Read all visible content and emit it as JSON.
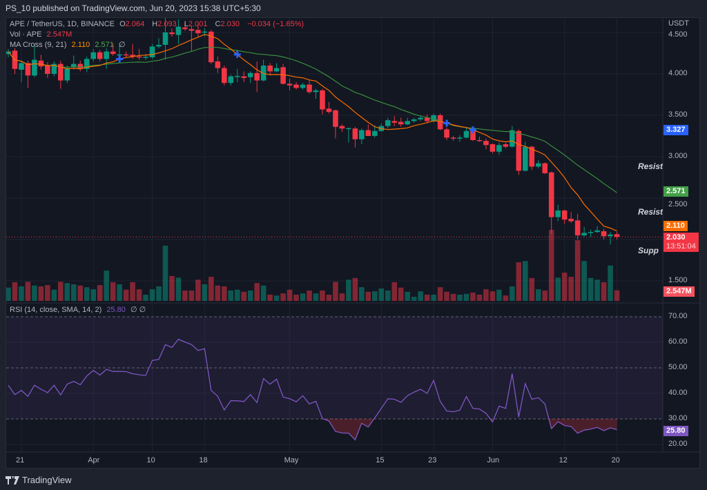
{
  "header": {
    "published": "PS_10 published on TradingView.com, Jun 20, 2023 15:38 UTC+5:30"
  },
  "legend": {
    "symbol": "APE / TetherUS, 1D, BINANCE",
    "o_label": "O",
    "o": "2.064",
    "h_label": "H",
    "h": "2.093",
    "l_label": "L",
    "l": "2.001",
    "c_label": "C",
    "c": "2.030",
    "change": "−0.034 (−1.65%)",
    "vol_label": "Vol · APE",
    "vol_value": "2.547M",
    "ma_label": "MA Cross (9, 21)",
    "ma_fast": "2.110",
    "ma_slow": "2.571",
    "ma_extra": "∅"
  },
  "rsi_legend": {
    "label": "RSI (14, close, SMA, 14, 2)",
    "value": "25.80",
    "extra": "∅ ∅"
  },
  "price_axis": {
    "unit": "USDT",
    "ticks": [
      "4.500",
      "4.000",
      "3.500",
      "3.000",
      "2.500",
      "1.500"
    ],
    "badges": {
      "blue": {
        "text": "3.327",
        "price": 3.327
      },
      "ma_slow": {
        "text": "2.571",
        "price": 2.571
      },
      "ma_fast": {
        "text": "2.110",
        "price": 2.11
      },
      "last": {
        "text": "2.030",
        "price": 2.03,
        "countdown": "13:51:04"
      },
      "volume": "2.547M"
    }
  },
  "rsi_axis": {
    "ticks": [
      "70.00",
      "60.00",
      "50.00",
      "40.00",
      "30.00",
      "20.00"
    ],
    "badge": "25.80"
  },
  "time_axis": [
    {
      "label": "21",
      "date": "2023-03-21"
    },
    {
      "label": "Apr",
      "date": "2023-04-01"
    },
    {
      "label": "10",
      "date": "2023-04-10"
    },
    {
      "label": "18",
      "date": "2023-04-18"
    },
    {
      "label": "May",
      "date": "2023-05-01"
    },
    {
      "label": "15",
      "date": "2023-05-15"
    },
    {
      "label": "23",
      "date": "2023-05-23"
    },
    {
      "label": "Jun",
      "date": "2023-06-01"
    },
    {
      "label": "12",
      "date": "2023-06-12"
    },
    {
      "label": "20",
      "date": "2023-06-20"
    }
  ],
  "drawings": [
    {
      "text": "Resista",
      "price": 2.88
    },
    {
      "text": "Resista",
      "price": 2.33
    },
    {
      "text": "Supp",
      "price": 1.87
    }
  ],
  "colors": {
    "up": "#089981",
    "down": "#f23645",
    "ma_fast": "#ff6d00",
    "ma_slow": "#388e3c",
    "rsi": "#7e57c2",
    "cross": "#2962ff",
    "bg": "#131722"
  },
  "footer": {
    "brand": "TradingView"
  },
  "chart_data": {
    "type": "candlestick",
    "symbol": "APE / TetherUS",
    "interval": "1D",
    "ylim": [
      1.35,
      4.6
    ],
    "ma_periods": [
      9,
      21
    ],
    "ma_crosses": [
      "2023-04-05",
      "2023-04-23",
      "2023-05-25",
      "2023-05-29"
    ],
    "dates": [
      "2023-03-19",
      "2023-03-20",
      "2023-03-21",
      "2023-03-22",
      "2023-03-23",
      "2023-03-24",
      "2023-03-25",
      "2023-03-26",
      "2023-03-27",
      "2023-03-28",
      "2023-03-29",
      "2023-03-30",
      "2023-03-31",
      "2023-04-01",
      "2023-04-02",
      "2023-04-03",
      "2023-04-04",
      "2023-04-05",
      "2023-04-06",
      "2023-04-07",
      "2023-04-08",
      "2023-04-09",
      "2023-04-10",
      "2023-04-11",
      "2023-04-12",
      "2023-04-13",
      "2023-04-14",
      "2023-04-15",
      "2023-04-16",
      "2023-04-17",
      "2023-04-18",
      "2023-04-19",
      "2023-04-20",
      "2023-04-21",
      "2023-04-22",
      "2023-04-23",
      "2023-04-24",
      "2023-04-25",
      "2023-04-26",
      "2023-04-27",
      "2023-04-28",
      "2023-04-29",
      "2023-04-30",
      "2023-05-01",
      "2023-05-02",
      "2023-05-03",
      "2023-05-04",
      "2023-05-05",
      "2023-05-06",
      "2023-05-07",
      "2023-05-08",
      "2023-05-09",
      "2023-05-10",
      "2023-05-11",
      "2023-05-12",
      "2023-05-13",
      "2023-05-14",
      "2023-05-15",
      "2023-05-16",
      "2023-05-17",
      "2023-05-18",
      "2023-05-19",
      "2023-05-20",
      "2023-05-21",
      "2023-05-22",
      "2023-05-23",
      "2023-05-24",
      "2023-05-25",
      "2023-05-26",
      "2023-05-27",
      "2023-05-28",
      "2023-05-29",
      "2023-05-30",
      "2023-05-31",
      "2023-06-01",
      "2023-06-02",
      "2023-06-03",
      "2023-06-04",
      "2023-06-05",
      "2023-06-06",
      "2023-06-07",
      "2023-06-08",
      "2023-06-09",
      "2023-06-10",
      "2023-06-11",
      "2023-06-12",
      "2023-06-13",
      "2023-06-14",
      "2023-06-15",
      "2023-06-16",
      "2023-06-17",
      "2023-06-18",
      "2023-06-19",
      "2023-06-20"
    ],
    "ohlc": [
      [
        4.24,
        4.3,
        4.2,
        4.27
      ],
      [
        4.28,
        4.31,
        4.0,
        4.06
      ],
      [
        4.05,
        4.16,
        3.9,
        4.13
      ],
      [
        4.13,
        4.16,
        3.83,
        3.98
      ],
      [
        3.98,
        4.36,
        3.96,
        4.17
      ],
      [
        4.16,
        4.23,
        4.05,
        4.09
      ],
      [
        4.1,
        4.14,
        3.95,
        4.0
      ],
      [
        4.0,
        4.15,
        3.97,
        4.12
      ],
      [
        4.12,
        4.16,
        3.82,
        3.92
      ],
      [
        3.92,
        4.1,
        3.89,
        4.07
      ],
      [
        4.08,
        4.22,
        4.05,
        4.12
      ],
      [
        4.12,
        4.16,
        4.03,
        4.06
      ],
      [
        4.06,
        4.21,
        4.02,
        4.18
      ],
      [
        4.18,
        4.3,
        4.15,
        4.26
      ],
      [
        4.26,
        4.29,
        4.15,
        4.18
      ],
      [
        4.18,
        4.31,
        4.06,
        4.27
      ],
      [
        4.27,
        4.37,
        4.22,
        4.24
      ],
      [
        4.23,
        4.37,
        4.16,
        4.235
      ],
      [
        4.235,
        4.27,
        4.2,
        4.23
      ],
      [
        4.23,
        4.36,
        4.18,
        4.21
      ],
      [
        4.21,
        4.3,
        4.17,
        4.2
      ],
      [
        4.2,
        4.24,
        4.17,
        4.205
      ],
      [
        4.2,
        4.36,
        4.18,
        4.33
      ],
      [
        4.33,
        4.43,
        4.31,
        4.35
      ],
      [
        4.35,
        4.68,
        4.17,
        4.5
      ],
      [
        4.5,
        4.55,
        4.45,
        4.48
      ],
      [
        4.47,
        4.66,
        4.36,
        4.57
      ],
      [
        4.56,
        4.62,
        4.52,
        4.54
      ],
      [
        4.54,
        4.58,
        4.27,
        4.52
      ],
      [
        4.53,
        4.6,
        4.45,
        4.49
      ],
      [
        4.5,
        4.55,
        4.45,
        4.51
      ],
      [
        4.51,
        4.53,
        4.12,
        4.14
      ],
      [
        4.15,
        4.21,
        4.01,
        4.07
      ],
      [
        4.07,
        4.1,
        3.86,
        3.89
      ],
      [
        3.89,
        3.99,
        3.86,
        3.97
      ],
      [
        3.97,
        4.06,
        3.9,
        3.975
      ],
      [
        3.97,
        4.03,
        3.9,
        3.95
      ],
      [
        3.96,
        4.03,
        3.89,
        4.01
      ],
      [
        4.01,
        4.15,
        3.78,
        3.92
      ],
      [
        3.92,
        4.17,
        3.91,
        4.1
      ],
      [
        4.1,
        4.13,
        3.98,
        4.03
      ],
      [
        4.03,
        4.13,
        4.02,
        4.07
      ],
      [
        4.08,
        4.12,
        3.87,
        3.88
      ],
      [
        3.88,
        3.94,
        3.8,
        3.86
      ],
      [
        3.87,
        3.9,
        3.81,
        3.83
      ],
      [
        3.83,
        3.89,
        3.81,
        3.87
      ],
      [
        3.87,
        3.92,
        3.76,
        3.78
      ],
      [
        3.78,
        3.82,
        3.7,
        3.8
      ],
      [
        3.8,
        3.82,
        3.51,
        3.57
      ],
      [
        3.58,
        3.66,
        3.52,
        3.54
      ],
      [
        3.56,
        3.57,
        3.22,
        3.36
      ],
      [
        3.37,
        3.39,
        3.3,
        3.34
      ],
      [
        3.34,
        3.35,
        3.17,
        3.345
      ],
      [
        3.34,
        3.36,
        3.11,
        3.21
      ],
      [
        3.21,
        3.34,
        3.15,
        3.32
      ],
      [
        3.32,
        3.39,
        3.27,
        3.25
      ],
      [
        3.25,
        3.38,
        3.23,
        3.31
      ],
      [
        3.31,
        3.4,
        3.3,
        3.37
      ],
      [
        3.37,
        3.47,
        3.34,
        3.44
      ],
      [
        3.43,
        3.49,
        3.37,
        3.41
      ],
      [
        3.42,
        3.47,
        3.36,
        3.39
      ],
      [
        3.39,
        3.47,
        3.38,
        3.43
      ],
      [
        3.43,
        3.47,
        3.41,
        3.45
      ],
      [
        3.45,
        3.5,
        3.43,
        3.47
      ],
      [
        3.47,
        3.51,
        3.41,
        3.43
      ],
      [
        3.43,
        3.52,
        3.41,
        3.5
      ],
      [
        3.5,
        3.52,
        3.32,
        3.33
      ],
      [
        3.33,
        3.35,
        3.2,
        3.23
      ],
      [
        3.23,
        3.25,
        3.19,
        3.22
      ],
      [
        3.22,
        3.26,
        3.18,
        3.23
      ],
      [
        3.23,
        3.35,
        3.22,
        3.31
      ],
      [
        3.31,
        3.34,
        3.19,
        3.2
      ],
      [
        3.2,
        3.24,
        3.18,
        3.19
      ],
      [
        3.19,
        3.22,
        3.09,
        3.14
      ],
      [
        3.15,
        3.16,
        3.04,
        3.06
      ],
      [
        3.06,
        3.17,
        3.02,
        3.14
      ],
      [
        3.15,
        3.17,
        3.1,
        3.12
      ],
      [
        3.12,
        3.37,
        3.11,
        3.32
      ],
      [
        3.31,
        3.33,
        2.78,
        2.83
      ],
      [
        2.83,
        3.18,
        2.82,
        3.12
      ],
      [
        3.12,
        3.13,
        2.84,
        2.88
      ],
      [
        2.88,
        2.96,
        2.86,
        2.92
      ],
      [
        2.92,
        2.93,
        2.79,
        2.8
      ],
      [
        2.81,
        2.82,
        2.07,
        2.27
      ],
      [
        2.27,
        2.42,
        2.22,
        2.35
      ],
      [
        2.35,
        2.36,
        2.19,
        2.24
      ],
      [
        2.25,
        2.33,
        2.2,
        2.22
      ],
      [
        2.23,
        2.31,
        2.0,
        2.05
      ],
      [
        2.05,
        2.15,
        2.03,
        2.08
      ],
      [
        2.085,
        2.12,
        2.03,
        2.09
      ],
      [
        2.09,
        2.16,
        2.08,
        2.11
      ],
      [
        2.1,
        2.13,
        2.0,
        2.04
      ],
      [
        2.04,
        2.09,
        1.94,
        2.06
      ],
      [
        2.064,
        2.093,
        2.001,
        2.03
      ]
    ],
    "volume_m": [
      3.2,
      4.5,
      3.5,
      4.6,
      3.7,
      3.5,
      3.8,
      2.7,
      4.6,
      4.3,
      4.0,
      3.7,
      3.3,
      2.8,
      3.8,
      7.3,
      4.5,
      4.0,
      2.7,
      4.5,
      2.8,
      1.5,
      2.8,
      3.5,
      13.3,
      6.0,
      5.6,
      2.5,
      2.5,
      5.1,
      4.0,
      5.8,
      3.7,
      3.5,
      2.5,
      2.7,
      2.2,
      2.5,
      4.3,
      3.7,
      1.5,
      1.3,
      1.8,
      2.7,
      1.5,
      1.8,
      2.5,
      1.8,
      2.5,
      1.5,
      4.6,
      1.8,
      5.1,
      5.5,
      3.3,
      2.2,
      2.3,
      3.0,
      2.5,
      4.5,
      3.2,
      2.2,
      1.0,
      2.3,
      1.5,
      1.5,
      3.3,
      2.2,
      1.7,
      1.5,
      1.7,
      2.0,
      1.5,
      2.8,
      2.3,
      2.7,
      1.3,
      3.5,
      9.3,
      9.6,
      5.5,
      2.8,
      2.5,
      17.1,
      5.6,
      6.8,
      5.8,
      14.6,
      9.6,
      5.5,
      5.1,
      4.5,
      8.5,
      2.547
    ],
    "rsi": [
      43.2,
      39.5,
      41.2,
      38.8,
      43.2,
      41.6,
      40.3,
      43.2,
      39.4,
      43.6,
      44.7,
      43.4,
      46.8,
      49.0,
      47.2,
      49.4,
      48.6,
      48.6,
      48.5,
      47.7,
      47.3,
      47.0,
      52.9,
      53.3,
      59.1,
      58.0,
      61.2,
      60.1,
      59.1,
      56.8,
      57.5,
      41.2,
      38.9,
      33.5,
      37.1,
      37.1,
      36.8,
      39.5,
      36.4,
      45.8,
      43.6,
      45.6,
      38.6,
      37.9,
      36.7,
      39.1,
      35.9,
      36.9,
      30.1,
      29.2,
      25.1,
      24.5,
      24.4,
      21.8,
      28.3,
      26.8,
      30.4,
      34.1,
      37.9,
      37.7,
      36.5,
      39.1,
      40.5,
      41.6,
      40.0,
      45.1,
      36.8,
      33.1,
      32.8,
      33.4,
      38.8,
      34.1,
      33.9,
      32.2,
      28.8,
      35.0,
      34.1,
      47.7,
      30.7,
      43.8,
      37.7,
      38.3,
      35.9,
      26.2,
      28.9,
      27.4,
      27.0,
      24.4,
      25.6,
      26.0,
      26.7,
      25.4,
      26.5,
      25.8
    ],
    "rsi_levels": {
      "upper": 70,
      "middle": 50,
      "lower": 30
    },
    "rsi_ylim": [
      17,
      72
    ]
  }
}
